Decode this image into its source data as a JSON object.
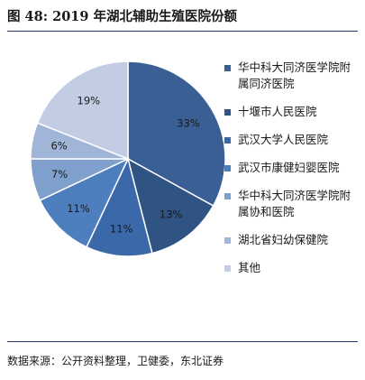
{
  "header": {
    "title": "图 48: 2019 年湖北辅助生殖医院份额"
  },
  "footer": {
    "source": "数据来源：公开资料整理，卫健委，东北证券"
  },
  "chart_data": {
    "type": "pie",
    "title": "",
    "legend_position": "right",
    "slices": [
      {
        "name": "华中科大同济医学院附属同济医院",
        "value": 33,
        "label": "33%",
        "color": "#3a5f95"
      },
      {
        "name": "十堰市人民医院",
        "value": 13,
        "label": "13%",
        "color": "#2f5382"
      },
      {
        "name": "武汉大学人民医院",
        "value": 11,
        "label": "11%",
        "color": "#3b68a8"
      },
      {
        "name": "武汉市康健妇婴医院",
        "value": 11,
        "label": "11%",
        "color": "#4d7fbf"
      },
      {
        "name": "华中科大同济医学院附属协和医院",
        "value": 7,
        "label": "7%",
        "color": "#7f9fcc"
      },
      {
        "name": "湖北省妇幼保健院",
        "value": 6,
        "label": "6%",
        "color": "#a1b5d8"
      },
      {
        "name": "其他",
        "value": 19,
        "label": "19%",
        "color": "#c2cde3"
      }
    ]
  }
}
